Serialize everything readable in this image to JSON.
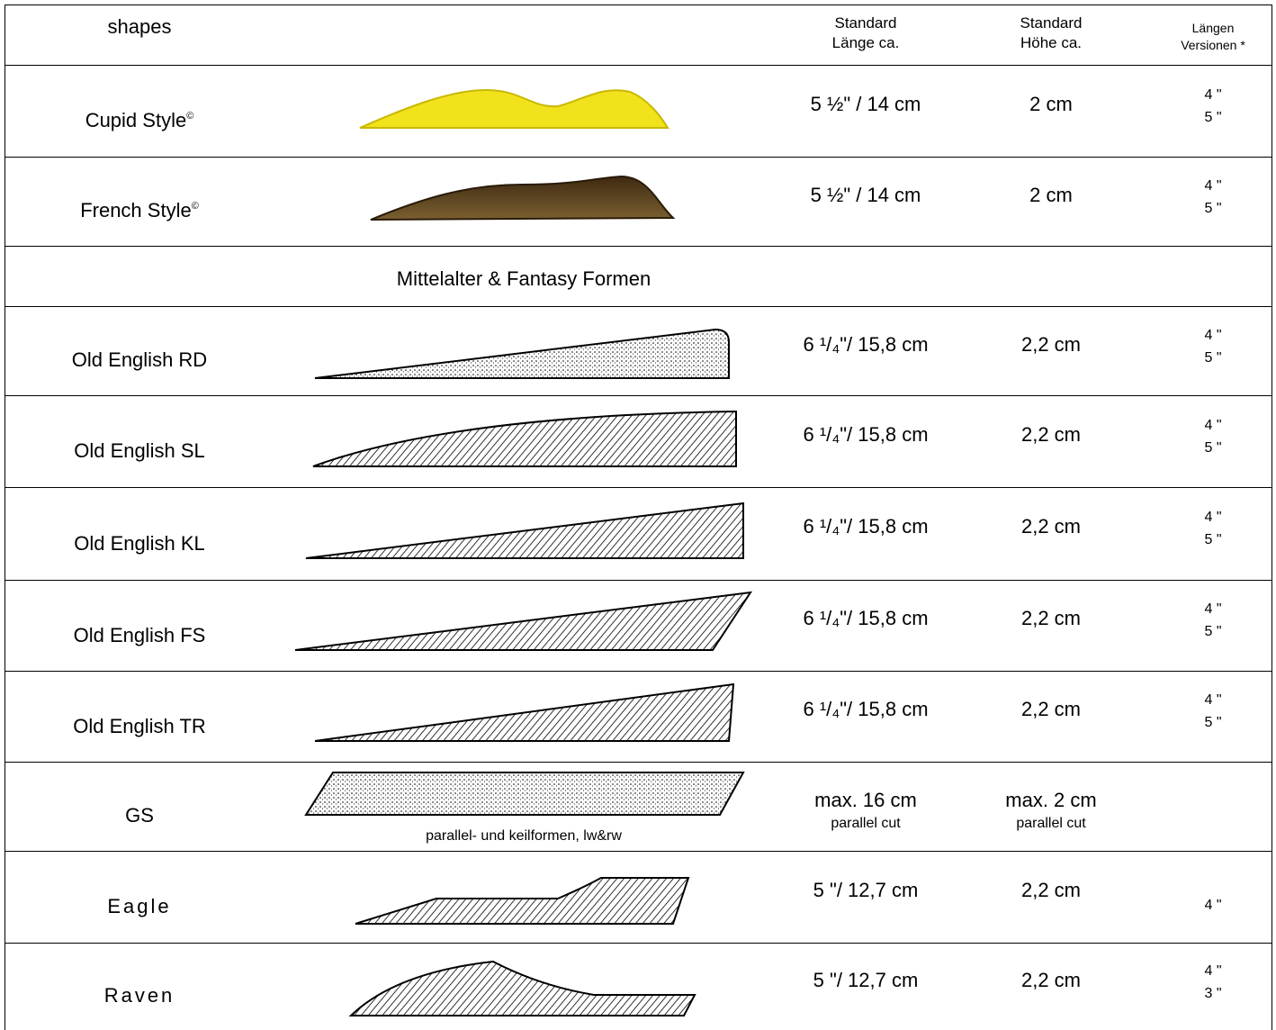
{
  "header": {
    "title": "shapes",
    "length": [
      "Standard",
      "Länge ca."
    ],
    "height": [
      "Standard",
      "Höhe ca."
    ],
    "versions": [
      "Längen",
      "Versionen *"
    ]
  },
  "rows": [
    {
      "name": "Cupid Style",
      "mark": "©",
      "length": "5 ½\" / 14 cm",
      "height": "2 cm",
      "versions": [
        "4 \"",
        "5 \""
      ]
    },
    {
      "name": "French Style",
      "mark": "©",
      "length": "5 ½\" / 14 cm",
      "height": "2 cm",
      "versions": [
        "4 \"",
        "5 \""
      ]
    },
    {
      "section": "Mittelalter & Fantasy Formen"
    },
    {
      "name": "Old English RD",
      "length": "6 ¹/₄\"/ 15,8 cm",
      "height": "2,2 cm",
      "versions": [
        "4 \"",
        "5 \""
      ]
    },
    {
      "name": "Old English SL",
      "length": "6 ¹/₄\"/ 15,8 cm",
      "height": "2,2 cm",
      "versions": [
        "4 \"",
        "5 \""
      ]
    },
    {
      "name": "Old English KL",
      "length": "6 ¹/₄\"/ 15,8 cm",
      "height": "2,2 cm",
      "versions": [
        "4 \"",
        "5 \""
      ]
    },
    {
      "name": "Old English FS",
      "length": "6 ¹/₄\"/ 15,8 cm",
      "height": "2,2 cm",
      "versions": [
        "4 \"",
        "5 \""
      ]
    },
    {
      "name": "Old English TR",
      "length": "6 ¹/₄\"/ 15,8 cm",
      "height": "2,2 cm",
      "versions": [
        "4 \"",
        "5 \""
      ]
    },
    {
      "name": "GS",
      "caption": "parallel- und keilformen, lw&rw",
      "length": "max. 16 cm",
      "length_note": "parallel cut",
      "height": "max. 2 cm",
      "height_note": "parallel cut"
    },
    {
      "name": "Eagle",
      "length": "5 \"/ 12,7 cm",
      "height": "2,2 cm",
      "versions": [
        "4 \""
      ]
    },
    {
      "name": "Raven",
      "length": "5 \"/ 12,7 cm",
      "height": "2,2 cm",
      "versions": [
        "4 \"",
        "3 \""
      ]
    }
  ]
}
